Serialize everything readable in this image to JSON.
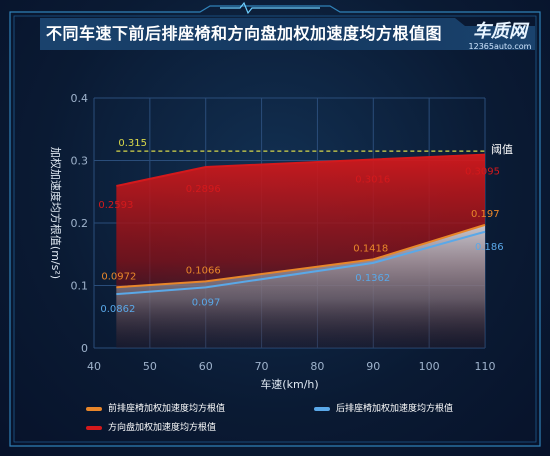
{
  "header": {
    "title": "不同车速下前后排座椅和方向盘加权加速度均方根值图",
    "logo_text": "车质网",
    "logo_sub": "12365auto.com"
  },
  "colors": {
    "background": "#0b1a30",
    "frame": "#3a9bd8",
    "grid": "#2a4d7a",
    "axis_text": "#9fb3cc",
    "front_seat": "#e8862a",
    "rear_seat": "#5aa8e8",
    "steering": "#d4191c",
    "threshold": "#d8d84a"
  },
  "chart_data": {
    "type": "area",
    "x": [
      44,
      60,
      90,
      110
    ],
    "xlabel": "车速(km/h)",
    "ylabel": "加权加速度均方根值(m/s²)",
    "xlim": [
      40,
      110
    ],
    "ylim": [
      0,
      0.4
    ],
    "xticks": [
      40,
      50,
      60,
      70,
      80,
      90,
      100,
      110
    ],
    "yticks": [
      0,
      0.1,
      0.2,
      0.3,
      0.4
    ],
    "ytick_labels": [
      "0",
      "0.1",
      "0.2",
      "0.3",
      "0.4"
    ],
    "grid": true,
    "series": [
      {
        "name": "前排座椅加权加速度均方根值",
        "color": "#e8862a",
        "values": [
          0.0972,
          0.1066,
          0.1418,
          0.197
        ],
        "labels": [
          "0.0972",
          "0.1066",
          "0.1418",
          "0.197"
        ]
      },
      {
        "name": "后排座椅加权加速度均方根值",
        "color": "#5aa8e8",
        "values": [
          0.0862,
          0.097,
          0.1362,
          0.186
        ],
        "labels": [
          "0.0862",
          "0.097",
          "0.1362",
          "0.186"
        ]
      },
      {
        "name": "方向盘加权加速度均方根值",
        "color": "#d4191c",
        "values": [
          0.2593,
          0.2896,
          0.3016,
          0.3095
        ],
        "labels": [
          "0.2593",
          "0.2896",
          "0.3016",
          "0.3095"
        ]
      }
    ],
    "threshold": {
      "label": "阈值",
      "value": 0.315,
      "value_label": "0.315"
    },
    "legend_position": "bottom"
  }
}
